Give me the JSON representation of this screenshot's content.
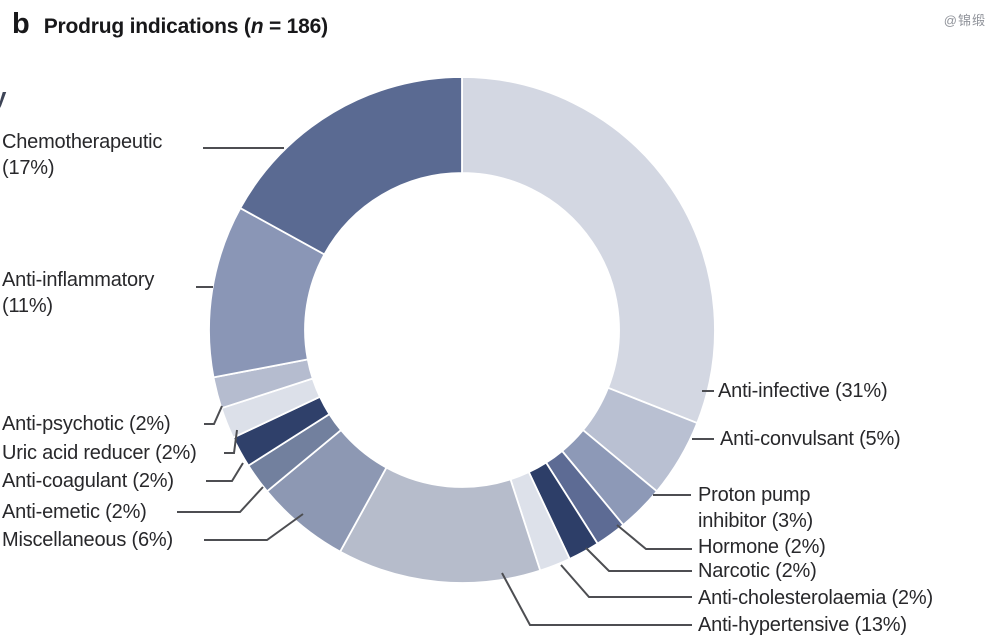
{
  "title": {
    "panel": "b",
    "prefix": "Prodrug indications (",
    "n": "n",
    "suffix": " = 186)"
  },
  "watermark": "@锦缎",
  "stray_fragment": "y",
  "chart_data": {
    "type": "pie",
    "subtype": "donut",
    "title": "Prodrug indications (n = 186)",
    "n_total": 186,
    "units": "percent",
    "start_angle_deg": 0,
    "direction": "clockwise",
    "segments": [
      {
        "id": "anti-infective",
        "label": "Anti-infective",
        "value": 31,
        "color": "#d3d7e2"
      },
      {
        "id": "anti-convulsant",
        "label": "Anti-convulsant",
        "value": 5,
        "color": "#b9c0d2"
      },
      {
        "id": "proton-pump-inhibitor",
        "label": "Proton pump inhibitor",
        "value": 3,
        "color": "#8d99b7"
      },
      {
        "id": "hormone",
        "label": "Hormone",
        "value": 2,
        "color": "#5d6b94"
      },
      {
        "id": "narcotic",
        "label": "Narcotic",
        "value": 2,
        "color": "#2d3e68"
      },
      {
        "id": "anti-cholesterolaemia",
        "label": "Anti-cholesterolaemia",
        "value": 2,
        "color": "#dde1ea"
      },
      {
        "id": "anti-hypertensive",
        "label": "Anti-hypertensive",
        "value": 13,
        "color": "#b6bccb"
      },
      {
        "id": "miscellaneous",
        "label": "Miscellaneous",
        "value": 6,
        "color": "#8d98b3"
      },
      {
        "id": "anti-emetic",
        "label": "Anti-emetic",
        "value": 2,
        "color": "#72809e"
      },
      {
        "id": "anti-coagulant",
        "label": "Anti-coagulant",
        "value": 2,
        "color": "#2f406a"
      },
      {
        "id": "uric-acid-reducer",
        "label": "Uric acid reducer",
        "value": 2,
        "color": "#dce0e9"
      },
      {
        "id": "anti-psychotic",
        "label": "Anti-psychotic",
        "value": 2,
        "color": "#b5bccf"
      },
      {
        "id": "anti-inflammatory",
        "label": "Anti-inflammatory",
        "value": 11,
        "color": "#8a96b6"
      },
      {
        "id": "chemotherapeutic",
        "label": "Chemotherapeutic",
        "value": 17,
        "color": "#5a6a92"
      }
    ]
  },
  "callouts": [
    {
      "id": "chemotherapeutic",
      "lines": [
        "Chemotherapeutic",
        "(17%)"
      ]
    },
    {
      "id": "anti-inflammatory",
      "lines": [
        "Anti-inflammatory",
        "(11%)"
      ]
    },
    {
      "id": "anti-psychotic",
      "lines": [
        "Anti-psychotic (2%)"
      ]
    },
    {
      "id": "uric-acid-reducer",
      "lines": [
        "Uric acid reducer (2%)"
      ]
    },
    {
      "id": "anti-coagulant",
      "lines": [
        "Anti-coagulant (2%)"
      ]
    },
    {
      "id": "anti-emetic",
      "lines": [
        "Anti-emetic (2%)"
      ]
    },
    {
      "id": "miscellaneous",
      "lines": [
        "Miscellaneous (6%)"
      ]
    },
    {
      "id": "anti-infective",
      "lines": [
        "Anti-infective (31%)"
      ]
    },
    {
      "id": "anti-convulsant",
      "lines": [
        "Anti-convulsant (5%)"
      ]
    },
    {
      "id": "proton-pump-inhibitor",
      "lines": [
        "Proton pump",
        "inhibitor (3%)"
      ]
    },
    {
      "id": "hormone",
      "lines": [
        "Hormone (2%)"
      ]
    },
    {
      "id": "narcotic",
      "lines": [
        "Narcotic (2%)"
      ]
    },
    {
      "id": "anti-cholesterolaemia",
      "lines": [
        "Anti-cholesterolaemia (2%)"
      ]
    },
    {
      "id": "anti-hypertensive",
      "lines": [
        "Anti-hypertensive (13%)"
      ]
    }
  ]
}
